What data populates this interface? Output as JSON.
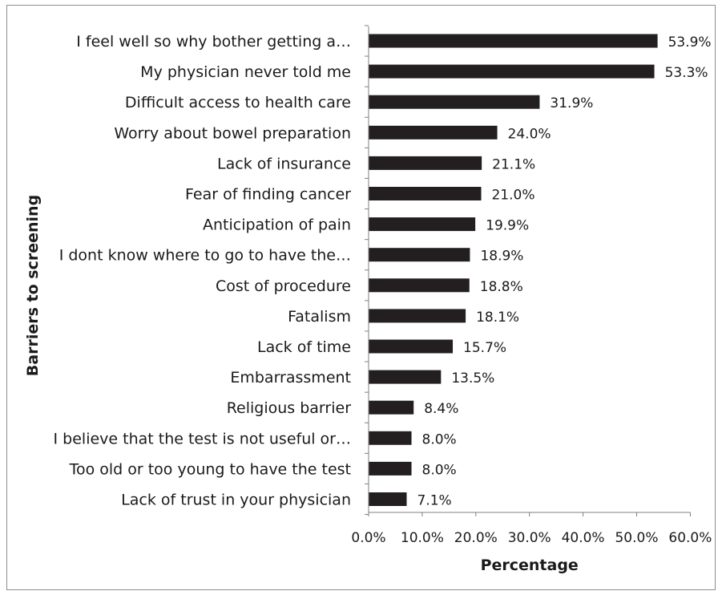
{
  "chart_data": {
    "type": "bar",
    "orientation": "horizontal",
    "categories": [
      "I feel well so why bother getting a…",
      "My physician never told me",
      "Difficult access to health care",
      "Worry about bowel preparation",
      "Lack of insurance",
      "Fear of finding cancer",
      "Anticipation of pain",
      "I dont know where to go to have the…",
      "Cost of procedure",
      "Fatalism",
      "Lack of time",
      "Embarrassment",
      "Religious barrier",
      "I believe that the test is not useful or…",
      "Too old or too young to have the test",
      "Lack of trust in your physician"
    ],
    "values": [
      53.9,
      53.3,
      31.9,
      24.0,
      21.1,
      21.0,
      19.9,
      18.9,
      18.8,
      18.1,
      15.7,
      13.5,
      8.4,
      8.0,
      8.0,
      7.1
    ],
    "value_labels": [
      "53.9%",
      "53.3%",
      "31.9%",
      "24.0%",
      "21.1%",
      "21.0%",
      "19.9%",
      "18.9%",
      "18.8%",
      "18.1%",
      "15.7%",
      "13.5%",
      "8.4%",
      "8.0%",
      "8.0%",
      "7.1%"
    ],
    "xlabel": "Percentage",
    "ylabel": "Barriers to screening",
    "xlim": [
      0,
      60
    ],
    "xticks": [
      0,
      10,
      20,
      30,
      40,
      50,
      60
    ],
    "xtick_labels": [
      "0.0%",
      "10.0%",
      "20.0%",
      "30.0%",
      "40.0%",
      "50.0%",
      "60.0%"
    ],
    "bar_color": "#231f20",
    "grid": false,
    "legend": "none"
  }
}
